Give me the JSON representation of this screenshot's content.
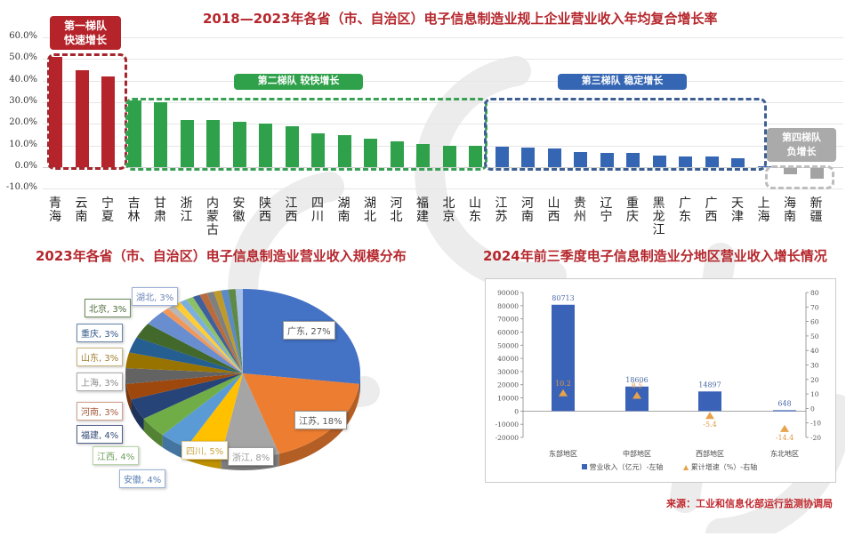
{
  "chart_data": [
    {
      "type": "bar",
      "title": "2018—2023年各省（市、自治区）电子信息制造业规上企业营业收入年均复合增长率",
      "xlabel": "",
      "ylabel": "",
      "ylim": [
        -0.1,
        0.6
      ],
      "yticks": [
        "60.0%",
        "50.0%",
        "40.0%",
        "30.0%",
        "20.0%",
        "10.0%",
        "0.0%",
        "-10.0%"
      ],
      "grid": true,
      "categories": [
        "青海",
        "云南",
        "宁夏",
        "吉林",
        "甘肃",
        "浙江",
        "内蒙古",
        "安徽",
        "陕西",
        "江西",
        "四川",
        "湖南",
        "湖北",
        "河北",
        "福建",
        "北京",
        "山东",
        "江苏",
        "河南",
        "山西",
        "贵州",
        "辽宁",
        "重庆",
        "黑龙江",
        "广东",
        "广西",
        "天津",
        "上海",
        "海南",
        "新疆"
      ],
      "values": [
        51.0,
        45.0,
        42.0,
        31.0,
        30.0,
        22.0,
        22.0,
        21.0,
        20.0,
        19.0,
        15.5,
        15.0,
        13.0,
        12.0,
        10.5,
        10.0,
        10.0,
        9.5,
        9.0,
        8.5,
        7.0,
        6.5,
        6.5,
        5.5,
        5.0,
        5.0,
        4.0,
        0.5,
        -3.0,
        -5.0
      ],
      "tiers": [
        {
          "label_line1": "第一梯队",
          "label_line2": "快速增长",
          "color": "#b5232b",
          "from": 0,
          "to": 2
        },
        {
          "label": "第二梯队  较快增长",
          "color": "#2fa14b",
          "from": 3,
          "to": 16
        },
        {
          "label": "第三梯队  稳定增长",
          "color": "#3566b4",
          "from": 17,
          "to": 27
        },
        {
          "label_line1": "第四梯队",
          "label_line2": "负增长",
          "color": "#a3a3a3",
          "from": 28,
          "to": 29
        }
      ]
    },
    {
      "type": "pie",
      "title": "2023年各省（市、自治区）电子信息制造业营业收入规模分布",
      "slices": [
        {
          "label": "广东, 27%",
          "name": "广东",
          "value": 27,
          "color": "#4472c4"
        },
        {
          "label": "江苏, 18%",
          "name": "江苏",
          "value": 18,
          "color": "#ed7d31"
        },
        {
          "label": "浙江, 8%",
          "name": "浙江",
          "value": 8,
          "color": "#a5a5a5"
        },
        {
          "label": "四川, 5%",
          "name": "四川",
          "value": 5,
          "color": "#ffc000"
        },
        {
          "label": "安徽, 4%",
          "name": "安徽",
          "value": 4,
          "color": "#5b9bd5"
        },
        {
          "label": "江西, 4%",
          "name": "江西",
          "value": 4,
          "color": "#70ad47"
        },
        {
          "label": "福建, 4%",
          "name": "福建",
          "value": 4,
          "color": "#264478"
        },
        {
          "label": "河南, 3%",
          "name": "河南",
          "value": 3,
          "color": "#9e480e"
        },
        {
          "label": "上海, 3%",
          "name": "上海",
          "value": 3,
          "color": "#636363"
        },
        {
          "label": "山东, 3%",
          "name": "山东",
          "value": 3,
          "color": "#997300"
        },
        {
          "label": "重庆, 3%",
          "name": "重庆",
          "value": 3,
          "color": "#255e91"
        },
        {
          "label": "北京, 3%",
          "name": "北京",
          "value": 3,
          "color": "#43682b"
        },
        {
          "label": "湖北, 3%",
          "name": "湖北",
          "value": 3,
          "color": "#698ed0"
        },
        {
          "label": "",
          "name": "其他",
          "value": 12,
          "color": "#f1975a"
        }
      ]
    },
    {
      "type": "bar",
      "title": "2024年前三季度电子信息制造业分地区营业收入增长情况",
      "categories": [
        "东部地区",
        "中部地区",
        "西部地区",
        "东北地区"
      ],
      "series": [
        {
          "name": "营业收入（亿元）-左轴",
          "type": "bar",
          "axis": "left",
          "values": [
            80713,
            18606,
            14897,
            648
          ],
          "color": "#3a62b6"
        },
        {
          "name": "累计增速（%）-右轴",
          "type": "scatter",
          "axis": "right",
          "values": [
            10.2,
            8.5,
            -5.4,
            -14.4
          ],
          "color": "#e8a24a"
        }
      ],
      "ylim_left": [
        -20000,
        90000
      ],
      "yticks_left": [
        "90000",
        "80000",
        "70000",
        "60000",
        "50000",
        "40000",
        "30000",
        "20000",
        "10000",
        "0",
        "-10000",
        "-20000"
      ],
      "ylim_right": [
        -20,
        80
      ],
      "yticks_right": [
        "80",
        "70",
        "60",
        "50",
        "40",
        "30",
        "20",
        "10",
        "0",
        "-10",
        "-20"
      ]
    }
  ],
  "top_chart": {
    "title": "2018—2023年各省（市、自治区）电子信息制造业规上企业营业收入年均复合增长率",
    "yticks": [
      "60.0%",
      "50.0%",
      "40.0%",
      "30.0%",
      "20.0%",
      "10.0%",
      "0.0%",
      "-10.0%"
    ],
    "tier1": {
      "line1": "第一梯队",
      "line2": "快速增长"
    },
    "tier2": {
      "label": "第二梯队  较快增长"
    },
    "tier3": {
      "label": "第三梯队  稳定增长"
    },
    "tier4": {
      "line1": "第四梯队",
      "line2": "负增长"
    }
  },
  "pie_chart": {
    "title": "2023年各省（市、自治区）电子信息制造业营业收入规模分布",
    "labels": {
      "guangdong": "广东, 27%",
      "jiangsu": "江苏, 18%",
      "zhejiang": "浙江, 8%",
      "sichuan": "四川, 5%",
      "anhui": "安徽, 4%",
      "jiangxi": "江西, 4%",
      "fujian": "福建, 4%",
      "henan": "河南, 3%",
      "shanghai": "上海, 3%",
      "shandong": "山东, 3%",
      "chongqing": "重庆, 3%",
      "beijing": "北京, 3%",
      "hubei": "湖北, 3%"
    }
  },
  "region_chart": {
    "title": "2024年前三季度电子信息制造业分地区营业收入增长情况",
    "bar_values": [
      "80713",
      "18606",
      "14897",
      "648"
    ],
    "growth_values": [
      "10.2",
      "8.5",
      "-5.4",
      "-14.4"
    ],
    "categories": [
      "东部地区",
      "中部地区",
      "西部地区",
      "东北地区"
    ],
    "legend_bar": "营业收入（亿元）-左轴",
    "legend_growth": "累计增速（%）-右轴"
  },
  "source": "来源：工业和信息化部运行监测协调局",
  "watermark": "CCID"
}
